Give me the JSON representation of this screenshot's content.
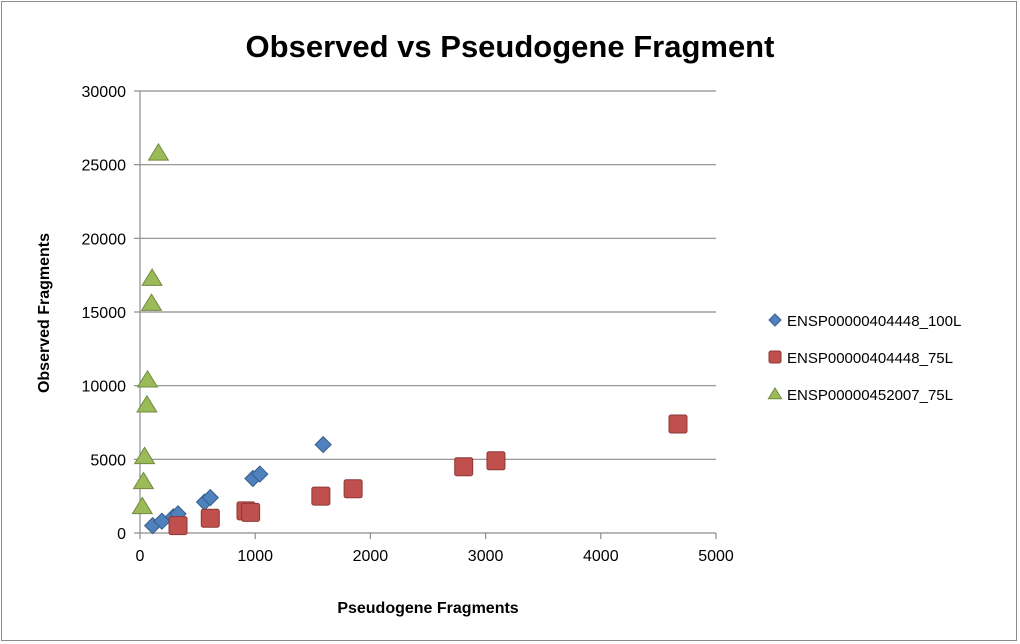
{
  "chart_data": {
    "type": "scatter",
    "title": "Observed vs Pseudogene Fragment",
    "xlabel": "Pseudogene Fragments",
    "ylabel": "Observed Fragments",
    "xlim": [
      0,
      5000
    ],
    "ylim": [
      0,
      30000
    ],
    "x_ticks": [
      "0",
      "1000",
      "2000",
      "3000",
      "4000",
      "5000"
    ],
    "y_ticks": [
      "0",
      "5000",
      "10000",
      "15000",
      "20000",
      "25000",
      "30000"
    ],
    "grid": "horizontal major gridlines",
    "legend_position": "right",
    "series": [
      {
        "name": "ENSP00000404448_100L",
        "marker": "diamond",
        "color": "#4f81bd",
        "points": [
          {
            "x": 110,
            "y": 500
          },
          {
            "x": 190,
            "y": 800
          },
          {
            "x": 290,
            "y": 1100
          },
          {
            "x": 330,
            "y": 1300
          },
          {
            "x": 560,
            "y": 2100
          },
          {
            "x": 610,
            "y": 2400
          },
          {
            "x": 980,
            "y": 3700
          },
          {
            "x": 1040,
            "y": 4000
          },
          {
            "x": 1590,
            "y": 6000
          }
        ]
      },
      {
        "name": "ENSP00000404448_75L",
        "marker": "square",
        "color": "#c0504d",
        "points": [
          {
            "x": 330,
            "y": 500
          },
          {
            "x": 610,
            "y": 1000
          },
          {
            "x": 920,
            "y": 1500
          },
          {
            "x": 960,
            "y": 1400
          },
          {
            "x": 1570,
            "y": 2500
          },
          {
            "x": 1850,
            "y": 3000
          },
          {
            "x": 2810,
            "y": 4500
          },
          {
            "x": 3090,
            "y": 4900
          },
          {
            "x": 4670,
            "y": 7400
          }
        ]
      },
      {
        "name": "ENSP00000452007_75L",
        "marker": "triangle",
        "color": "#9bbb59",
        "points": [
          {
            "x": 20,
            "y": 1800
          },
          {
            "x": 30,
            "y": 3500
          },
          {
            "x": 40,
            "y": 5200
          },
          {
            "x": 60,
            "y": 8700
          },
          {
            "x": 65,
            "y": 10400
          },
          {
            "x": 100,
            "y": 15600
          },
          {
            "x": 105,
            "y": 17300
          },
          {
            "x": 160,
            "y": 25800
          }
        ]
      }
    ]
  }
}
